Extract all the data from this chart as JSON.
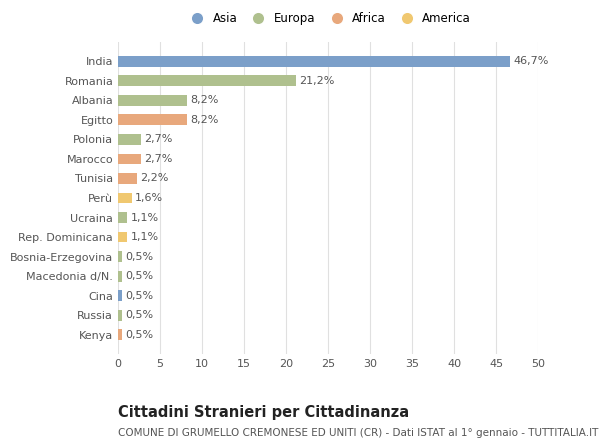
{
  "countries": [
    "India",
    "Romania",
    "Albania",
    "Egitto",
    "Polonia",
    "Marocco",
    "Tunisia",
    "Perù",
    "Ucraina",
    "Rep. Dominicana",
    "Bosnia-Erzegovina",
    "Macedonia d/N.",
    "Cina",
    "Russia",
    "Kenya"
  ],
  "values": [
    46.7,
    21.2,
    8.2,
    8.2,
    2.7,
    2.7,
    2.2,
    1.6,
    1.1,
    1.1,
    0.5,
    0.5,
    0.5,
    0.5,
    0.5
  ],
  "labels": [
    "46,7%",
    "21,2%",
    "8,2%",
    "8,2%",
    "2,7%",
    "2,7%",
    "2,2%",
    "1,6%",
    "1,1%",
    "1,1%",
    "0,5%",
    "0,5%",
    "0,5%",
    "0,5%",
    "0,5%"
  ],
  "colors": [
    "#7b9fc9",
    "#afc08e",
    "#afc08e",
    "#e8a87c",
    "#afc08e",
    "#e8a87c",
    "#e8a87c",
    "#f0c870",
    "#afc08e",
    "#f0c870",
    "#afc08e",
    "#afc08e",
    "#7b9fc9",
    "#afc08e",
    "#e8a87c"
  ],
  "legend_labels": [
    "Asia",
    "Europa",
    "Africa",
    "America"
  ],
  "legend_colors": [
    "#7b9fc9",
    "#afc08e",
    "#e8a87c",
    "#f0c870"
  ],
  "title": "Cittadini Stranieri per Cittadinanza",
  "subtitle": "COMUNE DI GRUMELLO CREMONESE ED UNITI (CR) - Dati ISTAT al 1° gennaio - TUTTITALIA.IT",
  "xlim": [
    0,
    50
  ],
  "xticks": [
    0,
    5,
    10,
    15,
    20,
    25,
    30,
    35,
    40,
    45,
    50
  ],
  "background_color": "#ffffff",
  "grid_color": "#e0e0e0",
  "bar_height": 0.55,
  "label_fontsize": 8.0,
  "tick_fontsize": 8.0,
  "title_fontsize": 10.5,
  "subtitle_fontsize": 7.5,
  "legend_fontsize": 8.5
}
